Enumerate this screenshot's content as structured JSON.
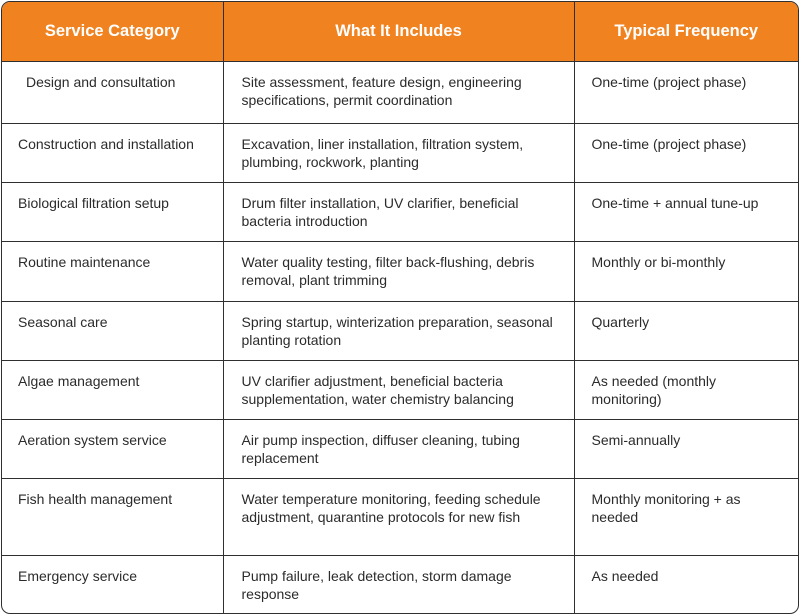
{
  "table": {
    "headers": [
      "Service Category",
      "What It Includes",
      "Typical Frequency"
    ],
    "rows": [
      {
        "category": "Design and consultation",
        "includes": "Site assessment, feature design, engineering specifications, permit coordination",
        "frequency": "One-time (project phase)"
      },
      {
        "category": "Construction and installation",
        "includes": "Excavation, liner installation, filtration system, plumbing, rockwork, planting",
        "frequency": "One-time (project phase)"
      },
      {
        "category": "Biological filtration setup",
        "includes": "Drum filter installation, UV clarifier, beneficial bacteria introduction",
        "frequency": "One-time + annual tune-up"
      },
      {
        "category": "Routine maintenance",
        "includes": "Water quality testing, filter back-flushing, debris removal, plant trimming",
        "frequency": "Monthly or bi-monthly"
      },
      {
        "category": "Seasonal care",
        "includes": "Spring startup, winterization preparation, seasonal planting rotation",
        "frequency": "Quarterly"
      },
      {
        "category": "Algae management",
        "includes": "UV clarifier adjustment, beneficial bacteria supplementation, water chemistry balancing",
        "frequency": "As needed (monthly monitoring)"
      },
      {
        "category": "Aeration system service",
        "includes": "Air pump inspection, diffuser cleaning, tubing replacement",
        "frequency": "Semi-annually"
      },
      {
        "category": "Fish health management",
        "includes": "Water temperature monitoring, feeding schedule adjustment, quarantine protocols for new fish",
        "frequency": "Monthly monitoring + as needed"
      },
      {
        "category": "Emergency service",
        "includes": "Pump failure, leak detection, storm damage response",
        "frequency": "As needed"
      }
    ]
  },
  "colors": {
    "header_bg": "#f08220",
    "header_text": "#ffffff",
    "border": "#2f2f2f"
  }
}
